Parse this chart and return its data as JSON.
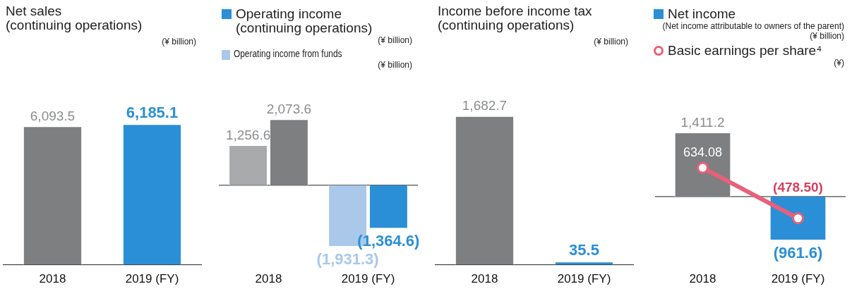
{
  "chart_data": [
    {
      "type": "bar",
      "title": "Net sales\n(continuing operations)",
      "subtitle": "(¥ billion)",
      "categories": [
        "2018",
        "2019 (FY)"
      ],
      "tick_labels": "x",
      "grid": false,
      "series": [
        {
          "colors": [
            "#7d7f81",
            "#2a8fd6"
          ],
          "values": [
            6093.5,
            6185.1
          ],
          "value_labels": [
            "6,093.5",
            "6,185.1"
          ]
        }
      ]
    },
    {
      "type": "bar",
      "categories": [
        "2018",
        "2019 (FY)"
      ],
      "tick_labels": "x",
      "grid": false,
      "legend": "top",
      "annotations": [
        "(¥ billion)",
        "(¥ billion)"
      ],
      "series": [
        {
          "name": "Operating income\n(continuing operations)",
          "color": "#2a8fd6",
          "colors": [
            "#7d7f81",
            "#2a8fd6"
          ],
          "values": [
            2073.6,
            -1364.6
          ],
          "value_labels": [
            "2,073.6",
            "(1,364.6)"
          ]
        },
        {
          "name": "Operating income from funds",
          "color": "#a9c8ea",
          "colors": [
            "#a8aaac",
            "#a9c8ea"
          ],
          "values": [
            1256.6,
            -1931.3
          ],
          "value_labels": [
            "1,256.6",
            "(1,931.3)"
          ]
        }
      ]
    },
    {
      "type": "bar",
      "title": "Income before income tax\n(continuing operations)",
      "subtitle": "(¥ billion)",
      "categories": [
        "2018",
        "2019 (FY)"
      ],
      "tick_labels": "x",
      "grid": false,
      "series": [
        {
          "colors": [
            "#7d7f81",
            "#2a8fd6"
          ],
          "values": [
            1682.7,
            35.5
          ],
          "value_labels": [
            "1,682.7",
            "35.5"
          ]
        }
      ]
    },
    {
      "type": "bar",
      "categories": [
        "2018",
        "2019 (FY)"
      ],
      "tick_labels": "x",
      "grid": false,
      "legend": "top",
      "marker": "circle",
      "annotations": [
        "(Net income attributable to owners of the parent)\n(¥ billion)",
        "(¥)"
      ],
      "series": [
        {
          "name": "Net income",
          "color": "#2a8fd6",
          "colors": [
            "#7d7f81",
            "#2a8fd6"
          ],
          "values": [
            1411.2,
            -961.6
          ],
          "value_labels": [
            "1,411.2",
            "(961.6)"
          ]
        },
        {
          "name": "Basic earnings per share⁴",
          "type": "line",
          "color": "#e8607a",
          "values": [
            634.08,
            -478.5
          ],
          "value_labels": [
            "634.08",
            "(478.50)"
          ]
        }
      ]
    }
  ]
}
